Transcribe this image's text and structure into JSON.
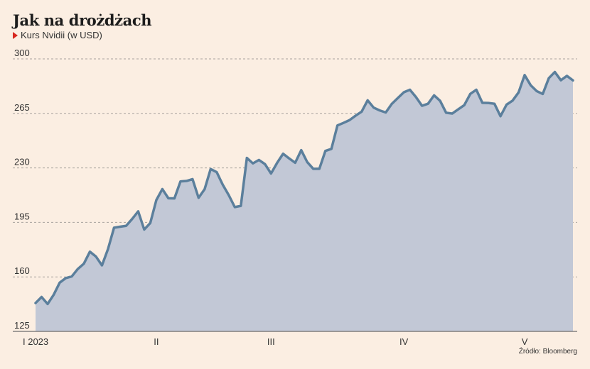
{
  "title": "Jak na drożdżach",
  "subtitle": "Kurs Nvidii (w USD)",
  "source": "Źródło: Bloomberg",
  "colors": {
    "background": "#fbeee2",
    "line": "#5b7f9c",
    "area": "#c2c8d6",
    "marker": "#d7261e",
    "grid": "#a8a29d"
  },
  "chart_data": {
    "type": "area",
    "title": "Jak na drożdżach",
    "subtitle": "Kurs Nvidii (w USD)",
    "xlabel": "",
    "ylabel": "",
    "ylim": [
      125,
      300
    ],
    "yticks": [
      125,
      160,
      195,
      230,
      265,
      300
    ],
    "y_tick_labels": [
      "125",
      "160",
      "195",
      "230",
      "265",
      "300"
    ],
    "x_tick_labels": [
      {
        "label": "I 2023",
        "index": 0
      },
      {
        "label": "II",
        "index": 20
      },
      {
        "label": "III",
        "index": 39
      },
      {
        "label": "IV",
        "index": 61
      },
      {
        "label": "V",
        "index": 81
      }
    ],
    "grid": true,
    "legend": "none",
    "series": [
      {
        "values": [
          143.2,
          147.1,
          142.6,
          148.5,
          156.3,
          159.2,
          160.3,
          165.1,
          168.5,
          176.2,
          173.1,
          167.4,
          177.9,
          191.6,
          192.2,
          192.8,
          197.2,
          202.1,
          190.4,
          194.6,
          209.3,
          216.4,
          210.5,
          210.4,
          221.3,
          221.6,
          222.8,
          210.8,
          216.3,
          229.3,
          227.3,
          219.2,
          212.5,
          204.8,
          205.6,
          236.4,
          232.9,
          235.1,
          232.4,
          226.4,
          233.2,
          239.1,
          236.1,
          233.3,
          241.4,
          233.7,
          229.4,
          229.4,
          240.9,
          242.2,
          257.3,
          258.9,
          260.7,
          263.5,
          266.1,
          273.4,
          268.7,
          266.9,
          265.6,
          271.1,
          274.9,
          278.6,
          280.2,
          275.5,
          269.9,
          271.2,
          276.6,
          273.1,
          265.4,
          264.9,
          267.6,
          270.3,
          277.5,
          280.2,
          271.8,
          271.7,
          271.2,
          263.2,
          270.6,
          273.2,
          278.5,
          289.6,
          283.1,
          279.3,
          277.5,
          287.6,
          291.6,
          286.3,
          289.1,
          286.2
        ]
      }
    ]
  }
}
